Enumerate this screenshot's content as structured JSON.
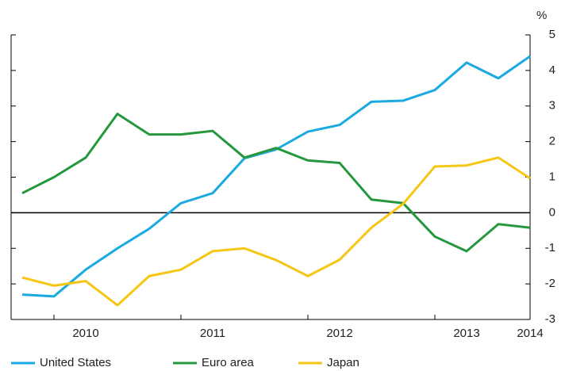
{
  "chart_data": {
    "type": "line",
    "y_unit": "%",
    "categories": [
      null,
      null,
      "2010",
      null,
      null,
      null,
      "2011",
      null,
      null,
      null,
      "2012",
      null,
      null,
      null,
      "2013",
      null,
      "2014"
    ],
    "series": [
      {
        "name": "United States",
        "color": "#1aa9e1",
        "values": [
          -2.3,
          -2.35,
          -1.6,
          -1.0,
          -0.45,
          0.27,
          0.55,
          1.53,
          1.78,
          2.28,
          2.47,
          3.12,
          3.15,
          3.45,
          4.22,
          3.78,
          4.4
        ]
      },
      {
        "name": "Euro area",
        "color": "#25983e",
        "values": [
          0.55,
          1.0,
          1.55,
          2.78,
          2.2,
          2.2,
          2.3,
          1.55,
          1.82,
          1.47,
          1.4,
          0.37,
          0.27,
          -0.67,
          -1.08,
          -0.32,
          -0.42
        ]
      },
      {
        "name": "Japan",
        "color": "#f6c614",
        "values": [
          -1.82,
          -2.05,
          -1.92,
          -2.6,
          -1.78,
          -1.6,
          -1.08,
          -1.0,
          -1.33,
          -1.78,
          -1.32,
          -0.42,
          0.25,
          1.3,
          1.33,
          1.55,
          0.97
        ]
      }
    ],
    "ylim": [
      -3,
      5
    ],
    "yticks": [
      -3,
      -2,
      -1,
      0,
      1,
      2,
      3,
      4,
      5
    ]
  }
}
